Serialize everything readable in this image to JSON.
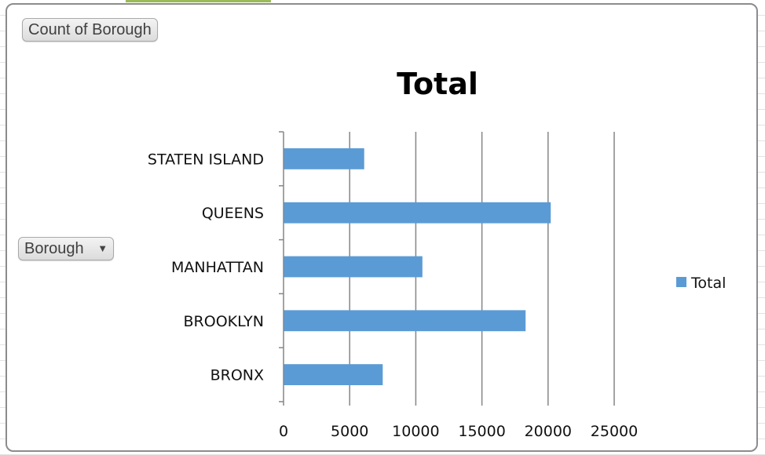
{
  "field_buttons": {
    "values_label": "Count of Borough",
    "axis_label": "Borough"
  },
  "colors": {
    "bar": "#5b9bd5",
    "gridline": "#868686",
    "axis": "#868686"
  },
  "chart_data": {
    "type": "bar",
    "orientation": "horizontal",
    "title": "Total",
    "xlabel": "",
    "ylabel": "",
    "categories": [
      "STATEN ISLAND",
      "QUEENS",
      "MANHATTAN",
      "BROOKLYN",
      "BRONX"
    ],
    "series": [
      {
        "name": "Total",
        "values": [
          6100,
          20200,
          10500,
          18300,
          7500
        ]
      }
    ],
    "xlim": [
      0,
      25000
    ],
    "xticks": [
      0,
      5000,
      10000,
      15000,
      20000,
      25000
    ],
    "xtick_labels": [
      "0",
      "5000",
      "10000",
      "15000",
      "20000",
      "25000"
    ],
    "grid": true,
    "legend_position": "right"
  }
}
